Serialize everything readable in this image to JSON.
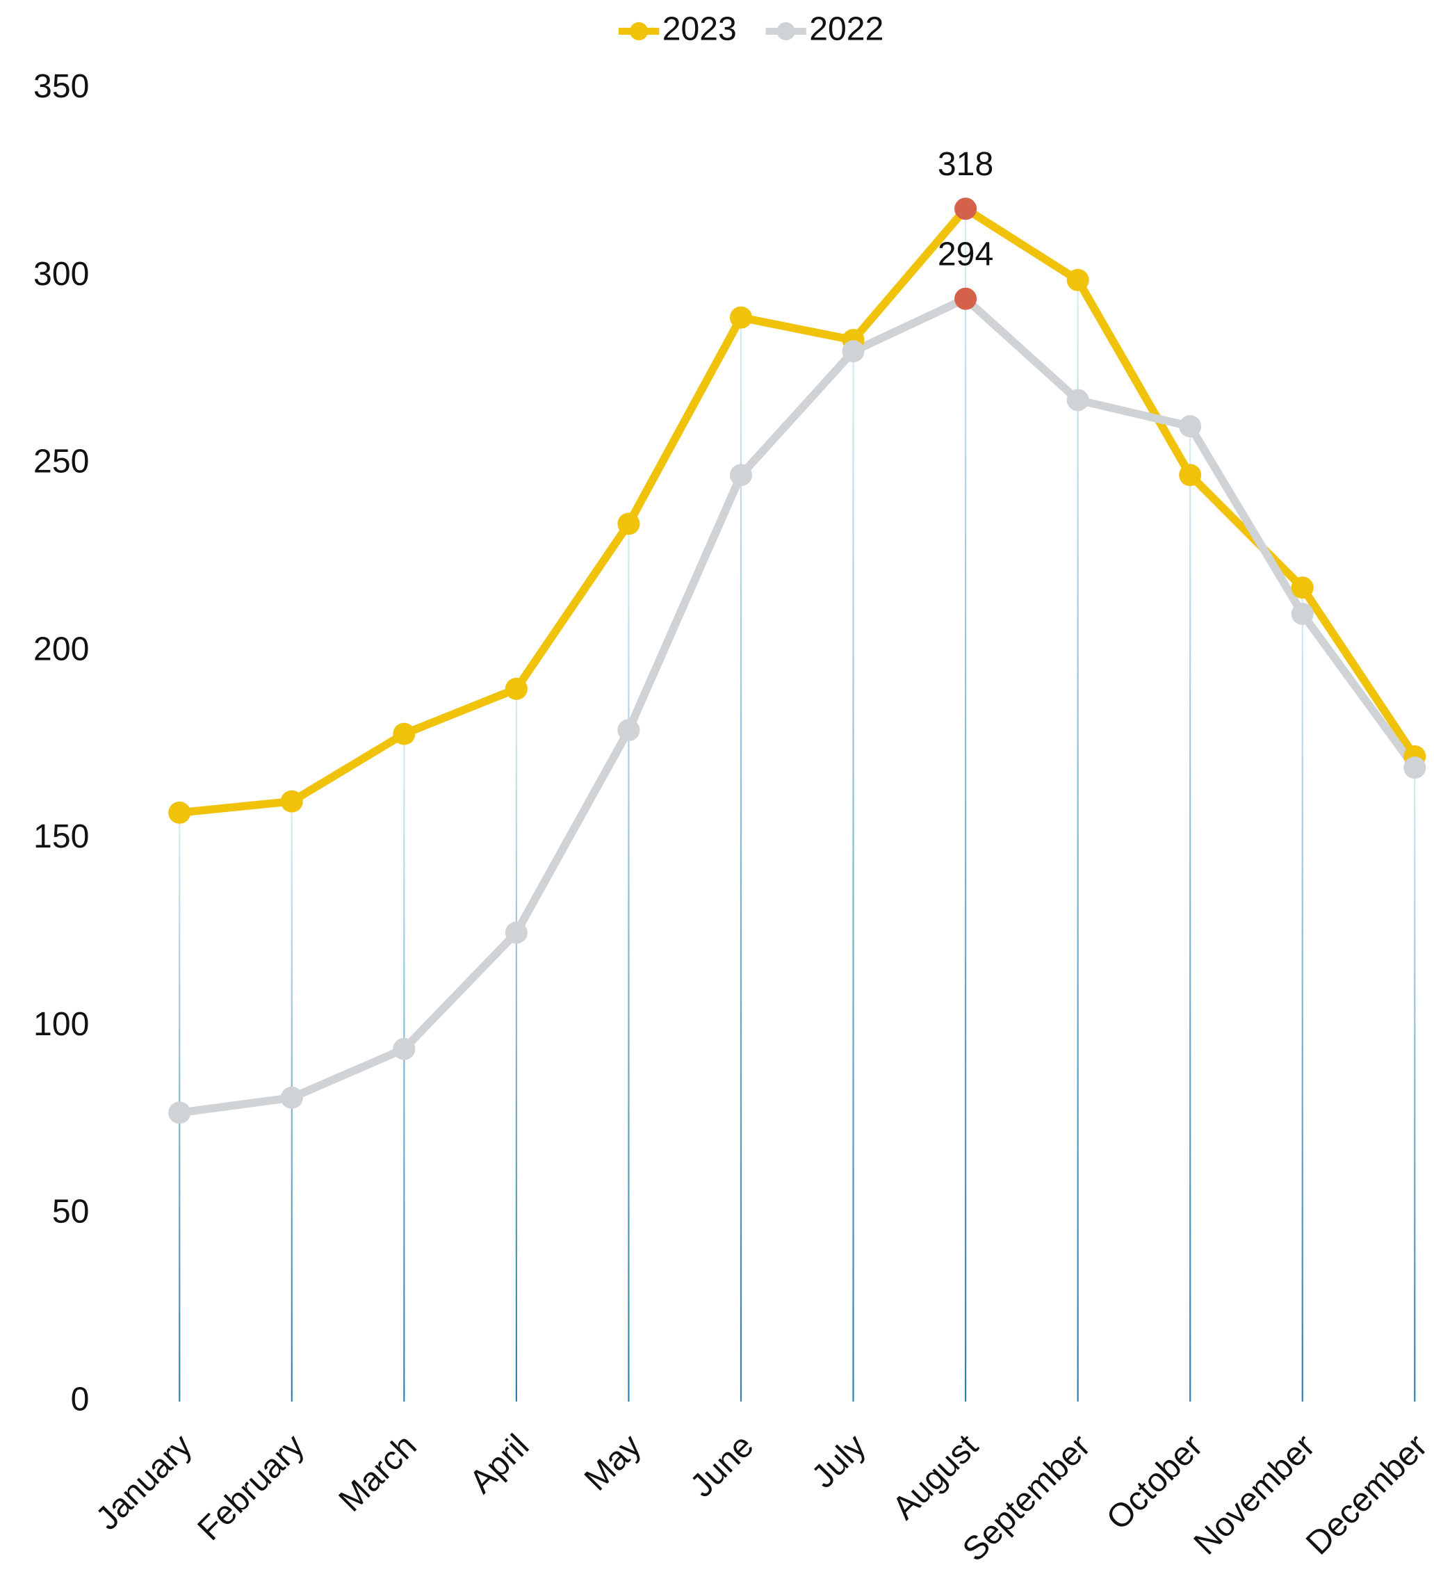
{
  "chart_data": {
    "type": "line",
    "categories": [
      "January",
      "February",
      "March",
      "April",
      "May",
      "June",
      "July",
      "August",
      "September",
      "October",
      "November",
      "December"
    ],
    "series": [
      {
        "name": "2023",
        "color": "#f0c20a",
        "values": [
          157,
          160,
          178,
          190,
          234,
          289,
          283,
          318,
          299,
          247,
          217,
          172
        ]
      },
      {
        "name": "2022",
        "color": "#d0d3d6",
        "values": [
          77,
          81,
          94,
          125,
          179,
          247,
          280,
          294,
          267,
          260,
          210,
          169
        ]
      }
    ],
    "ylim": [
      0,
      350
    ],
    "yticks": [
      0,
      50,
      100,
      150,
      200,
      250,
      300,
      350
    ],
    "highlight": {
      "index": 7,
      "color": "#d4614a"
    },
    "legend": "top",
    "grid": "vertical"
  }
}
